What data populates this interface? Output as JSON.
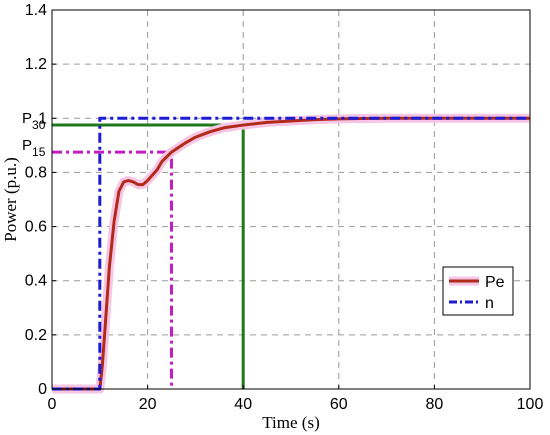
{
  "chart_data": {
    "type": "line",
    "xlabel": "Time (s)",
    "ylabel": "Power (p.u.)",
    "xlim": [
      0,
      100
    ],
    "ylim": [
      0,
      1.4
    ],
    "x_ticks": [
      "0",
      "20",
      "40",
      "60",
      "80",
      "100"
    ],
    "y_ticks": [
      "0",
      "0.2",
      "0.4",
      "0.6",
      "0.8",
      "1",
      "1.2",
      "1.4"
    ],
    "grid": true,
    "legend_position": "lower-right",
    "series": [
      {
        "name": "Pe",
        "color": "#b22a1a",
        "style": "solid",
        "x": [
          0,
          10,
          10.5,
          11,
          12,
          13,
          14,
          15,
          16,
          17,
          18,
          19,
          20,
          21,
          22,
          23,
          25,
          28,
          30,
          33,
          36,
          40,
          45,
          50,
          55,
          60,
          65,
          70,
          80,
          90,
          100
        ],
        "y": [
          0,
          0,
          0.08,
          0.2,
          0.45,
          0.62,
          0.73,
          0.765,
          0.77,
          0.765,
          0.755,
          0.755,
          0.77,
          0.79,
          0.81,
          0.84,
          0.875,
          0.91,
          0.93,
          0.95,
          0.965,
          0.975,
          0.985,
          0.99,
          0.995,
          0.998,
          0.999,
          1.0,
          1.0,
          1.0,
          1.0
        ]
      },
      {
        "name": "n",
        "color": "#1c1cd6",
        "style": "dash-dot",
        "x": [
          0,
          10,
          10,
          100
        ],
        "y": [
          0,
          0,
          1.0,
          1.0
        ]
      }
    ],
    "reference_lines": [
      {
        "color": "#c21ec2",
        "style": "dash-dot",
        "x": [
          0,
          25,
          25
        ],
        "y": [
          0.875,
          0.875,
          0
        ]
      },
      {
        "color": "#1f7a1f",
        "style": "solid",
        "x": [
          0,
          40,
          40
        ],
        "y": [
          0.975,
          0.975,
          0
        ]
      }
    ],
    "annotations": [
      {
        "text": "P",
        "sub": "30",
        "x": 0,
        "y": 0.975
      },
      {
        "text": "P",
        "sub": "15",
        "x": 0,
        "y": 0.875
      }
    ]
  }
}
